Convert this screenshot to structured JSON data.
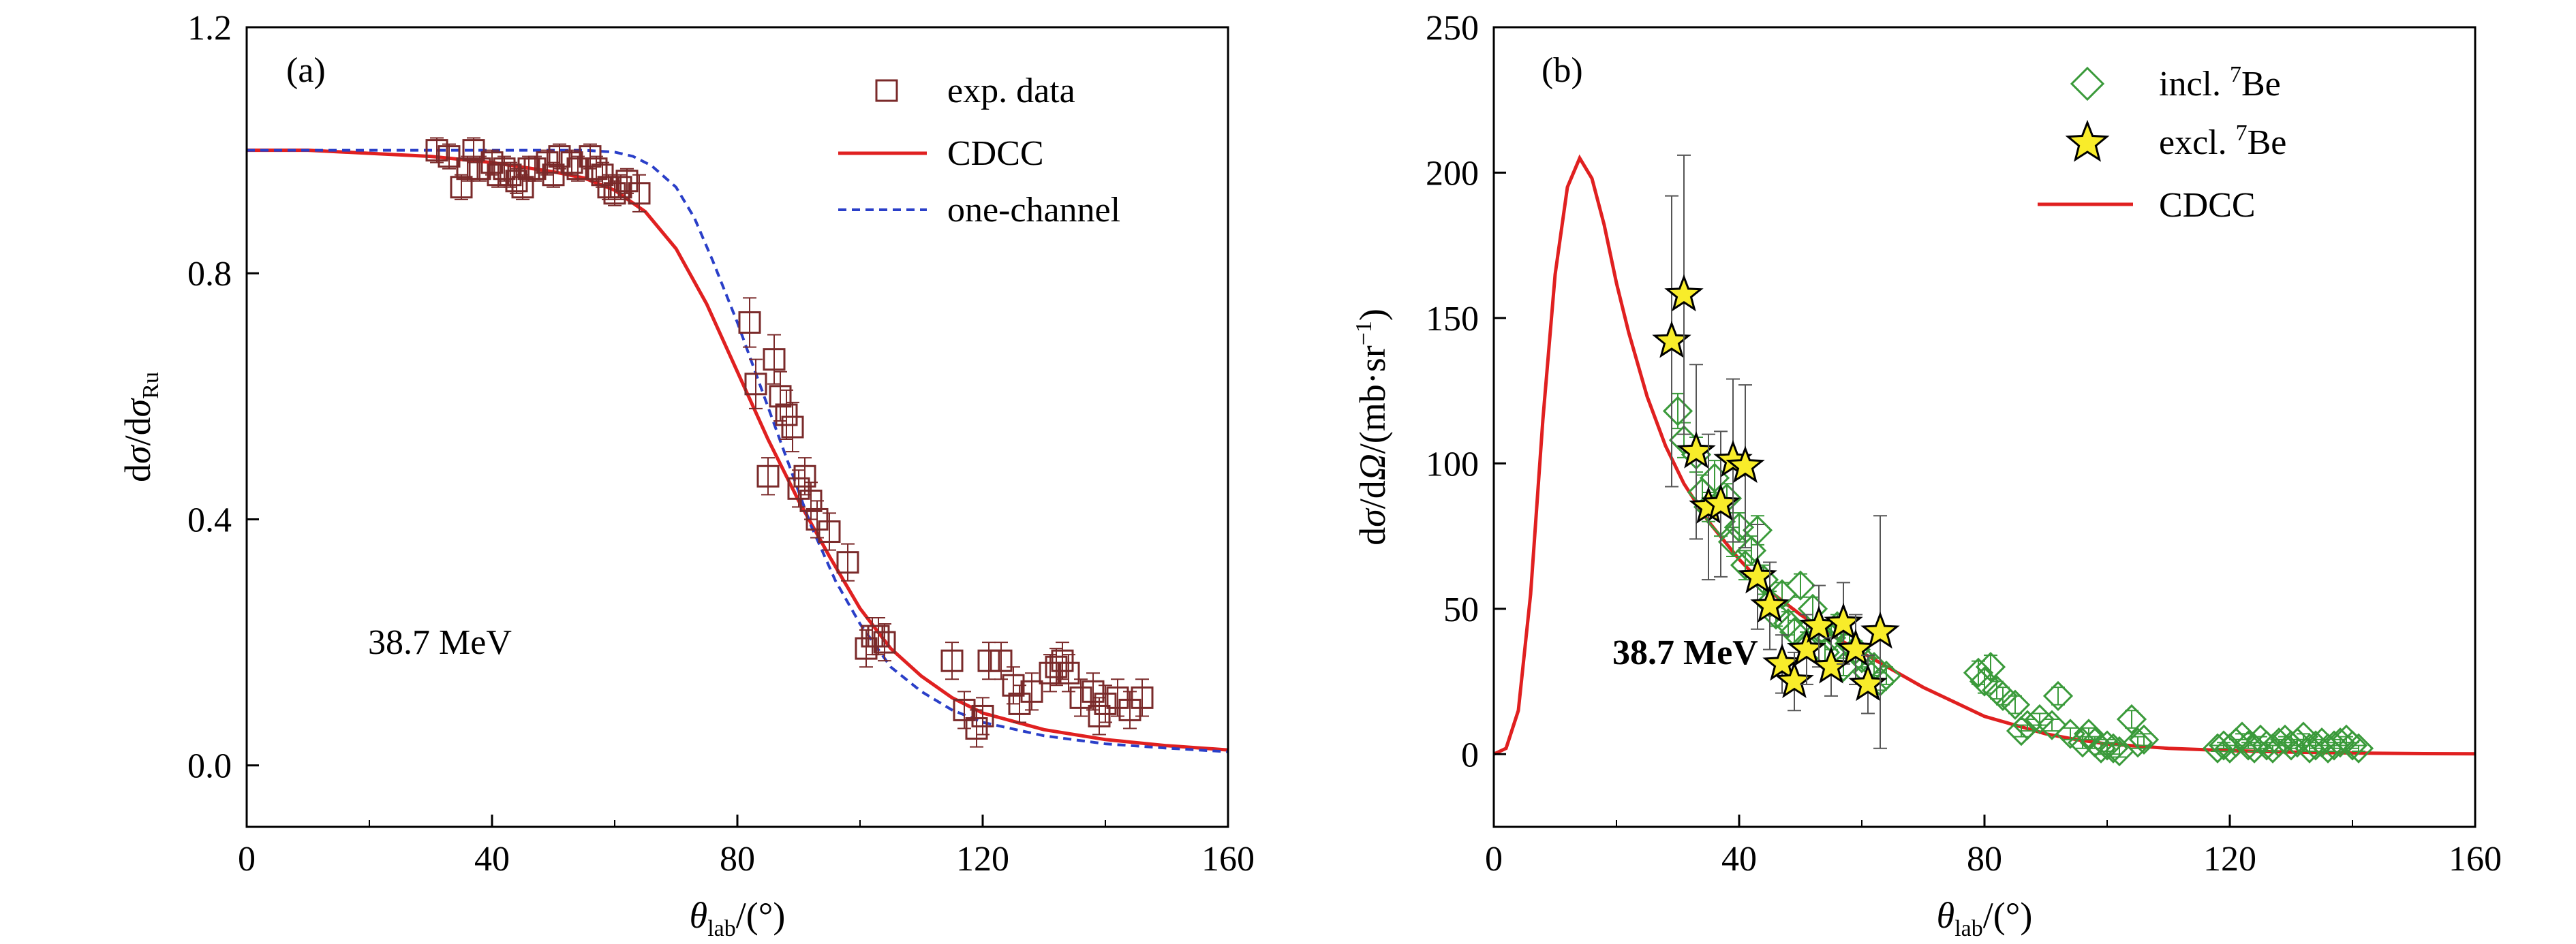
{
  "chart_data": [
    {
      "type": "scatter",
      "panel": "(a)",
      "annotation": "38.7 MeV",
      "xlabel": "θlab/(°)",
      "ylabel": "dσ/dσRu",
      "xlim": [
        0,
        160
      ],
      "ylim": [
        -0.1,
        1.2
      ],
      "xticks": [
        0,
        40,
        80,
        120,
        160
      ],
      "yticks": [
        0.0,
        0.4,
        0.8,
        1.2
      ],
      "legend_position": "top-right",
      "grid": false,
      "series": [
        {
          "name": "exp. data",
          "kind": "points",
          "marker": "open-square",
          "color": "#7a2a2a",
          "x": [
            31,
            33,
            35,
            36,
            37,
            38,
            40,
            41,
            42,
            43,
            44,
            45,
            46,
            47,
            49,
            50,
            51,
            53,
            54,
            56,
            57,
            58,
            59,
            60,
            61,
            62,
            64,
            82,
            83,
            85,
            86,
            87,
            88,
            89,
            90,
            91,
            92,
            93,
            95,
            98,
            101,
            102,
            103,
            104,
            115,
            117,
            119,
            120,
            121,
            123,
            125,
            126,
            128,
            131,
            132,
            133,
            134,
            136,
            138,
            139,
            140,
            142,
            144,
            146
          ],
          "y": [
            1.0,
            0.99,
            0.94,
            0.97,
            1.0,
            0.97,
            0.98,
            0.96,
            0.97,
            0.96,
            0.95,
            0.94,
            0.97,
            0.97,
            0.98,
            0.96,
            0.99,
            0.98,
            0.97,
            0.99,
            0.97,
            0.96,
            0.94,
            0.93,
            0.94,
            0.95,
            0.93,
            0.72,
            0.62,
            0.47,
            0.66,
            0.6,
            0.57,
            0.55,
            0.45,
            0.47,
            0.43,
            0.4,
            0.38,
            0.33,
            0.19,
            0.21,
            0.21,
            0.2,
            0.17,
            0.09,
            0.06,
            0.08,
            0.17,
            0.17,
            0.13,
            0.1,
            0.12,
            0.15,
            0.16,
            0.17,
            0.15,
            0.11,
            0.12,
            0.08,
            0.1,
            0.11,
            0.09,
            0.11
          ],
          "yerr": [
            0.02,
            0.02,
            0.02,
            0.02,
            0.02,
            0.02,
            0.02,
            0.02,
            0.02,
            0.02,
            0.02,
            0.02,
            0.02,
            0.02,
            0.02,
            0.02,
            0.02,
            0.02,
            0.02,
            0.02,
            0.02,
            0.02,
            0.02,
            0.02,
            0.02,
            0.02,
            0.03,
            0.04,
            0.04,
            0.03,
            0.04,
            0.04,
            0.04,
            0.04,
            0.03,
            0.03,
            0.03,
            0.03,
            0.03,
            0.03,
            0.03,
            0.03,
            0.03,
            0.03,
            0.03,
            0.03,
            0.03,
            0.03,
            0.03,
            0.03,
            0.03,
            0.03,
            0.03,
            0.03,
            0.03,
            0.03,
            0.03,
            0.03,
            0.03,
            0.03,
            0.03,
            0.03,
            0.03,
            0.03
          ]
        },
        {
          "name": "CDCC",
          "kind": "line",
          "style": "solid",
          "color": "#e02020",
          "x": [
            0,
            10,
            20,
            30,
            40,
            50,
            55,
            60,
            65,
            70,
            75,
            80,
            85,
            90,
            95,
            100,
            105,
            110,
            115,
            120,
            130,
            140,
            150,
            160
          ],
          "y": [
            1.0,
            1.0,
            0.995,
            0.99,
            0.98,
            0.965,
            0.955,
            0.935,
            0.9,
            0.84,
            0.75,
            0.64,
            0.53,
            0.43,
            0.34,
            0.255,
            0.19,
            0.145,
            0.11,
            0.085,
            0.058,
            0.042,
            0.032,
            0.025
          ]
        },
        {
          "name": "one-channel",
          "kind": "line",
          "style": "dashed",
          "color": "#2a3fc8",
          "x": [
            0,
            10,
            20,
            30,
            40,
            50,
            55,
            60,
            63,
            66,
            70,
            73,
            76,
            80,
            84,
            88,
            92,
            96,
            100,
            105,
            110,
            115,
            120,
            130,
            140,
            150,
            160
          ],
          "y": [
            1.0,
            1.0,
            1.0,
            1.0,
            1.0,
            1.0,
            1.0,
            0.997,
            0.99,
            0.975,
            0.94,
            0.89,
            0.82,
            0.72,
            0.61,
            0.5,
            0.39,
            0.3,
            0.23,
            0.16,
            0.12,
            0.09,
            0.07,
            0.048,
            0.035,
            0.028,
            0.022
          ]
        }
      ]
    },
    {
      "type": "scatter",
      "panel": "(b)",
      "annotation": "38.7 MeV",
      "xlabel": "θlab/(°)",
      "ylabel": "dσ/dΩ/(mb·sr−1)",
      "xlim": [
        0,
        160
      ],
      "ylim": [
        -25,
        250
      ],
      "xticks": [
        0,
        40,
        80,
        120,
        160
      ],
      "yticks": [
        0,
        50,
        100,
        150,
        200,
        250
      ],
      "legend_position": "top-right",
      "grid": false,
      "series": [
        {
          "name": "incl. 7Be",
          "kind": "points",
          "marker": "open-diamond",
          "color": "#3a9a3a",
          "x": [
            30,
            31,
            33,
            34,
            35,
            36,
            37,
            38,
            39,
            40,
            41,
            42,
            43,
            44,
            45,
            46,
            47,
            48,
            49,
            50,
            51,
            52,
            53,
            54,
            55,
            56,
            57,
            58,
            59,
            60,
            61,
            62,
            63,
            64,
            79,
            80,
            81,
            82,
            83,
            85,
            86,
            87,
            89,
            91,
            92,
            94,
            96,
            97,
            98,
            99,
            100,
            101,
            102,
            104,
            105,
            106,
            118,
            119,
            120,
            121,
            122,
            123,
            124,
            125,
            126,
            127,
            128,
            129,
            130,
            131,
            132,
            133,
            134,
            135,
            136,
            137,
            138,
            139,
            140,
            141
          ],
          "y": [
            118,
            108,
            103,
            90,
            85,
            95,
            80,
            88,
            73,
            78,
            65,
            70,
            77,
            60,
            52,
            48,
            55,
            45,
            42,
            58,
            38,
            50,
            42,
            35,
            40,
            44,
            30,
            38,
            36,
            33,
            28,
            30,
            25,
            27,
            28,
            25,
            30,
            22,
            20,
            17,
            8,
            10,
            12,
            10,
            20,
            7,
            4,
            7,
            4,
            2,
            3,
            2,
            1,
            12,
            4,
            5,
            2,
            3,
            2,
            4,
            6,
            3,
            2,
            5,
            3,
            2,
            4,
            5,
            3,
            4,
            6,
            2,
            3,
            4,
            2,
            3,
            4,
            5,
            3,
            2
          ],
          "yerr": [
            6,
            6,
            6,
            6,
            5,
            6,
            5,
            5,
            5,
            5,
            5,
            5,
            5,
            5,
            4,
            4,
            4,
            4,
            4,
            4,
            4,
            4,
            4,
            4,
            4,
            4,
            3,
            3,
            3,
            3,
            3,
            3,
            3,
            3,
            4,
            4,
            4,
            3,
            3,
            3,
            2,
            2,
            2,
            2,
            3,
            2,
            2,
            2,
            2,
            2,
            2,
            2,
            2,
            3,
            2,
            2,
            1,
            1,
            1,
            1,
            1,
            1,
            1,
            1,
            1,
            1,
            1,
            1,
            1,
            1,
            1,
            1,
            1,
            1,
            1,
            1,
            1,
            1,
            1,
            1
          ]
        },
        {
          "name": "excl. 7Be",
          "kind": "points",
          "marker": "star",
          "color": "#f8ec2a",
          "x": [
            29,
            31,
            33,
            35,
            37,
            39,
            41,
            43,
            45,
            47,
            49,
            51,
            53,
            55,
            57,
            59,
            61,
            63
          ],
          "y": [
            142,
            158,
            104,
            85,
            86,
            101,
            99,
            61,
            51,
            31,
            25,
            36,
            44,
            30,
            45,
            36,
            24,
            42
          ],
          "yerr": [
            50,
            48,
            30,
            25,
            25,
            28,
            28,
            18,
            15,
            10,
            10,
            12,
            14,
            10,
            14,
            12,
            10,
            40
          ]
        },
        {
          "name": "CDCC",
          "kind": "line",
          "style": "solid",
          "color": "#e02020",
          "x": [
            0,
            2,
            4,
            6,
            8,
            10,
            12,
            14,
            16,
            18,
            20,
            22,
            25,
            28,
            31,
            35,
            40,
            45,
            50,
            55,
            60,
            65,
            70,
            75,
            80,
            85,
            90,
            95,
            100,
            110,
            120,
            130,
            140,
            150,
            160
          ],
          "y": [
            0,
            2,
            15,
            55,
            115,
            165,
            195,
            205,
            198,
            182,
            162,
            145,
            123,
            106,
            93,
            80,
            67,
            56,
            48,
            41,
            35,
            29,
            23,
            18,
            13,
            10,
            7,
            5,
            3.5,
            2,
            1.2,
            0.7,
            0.4,
            0.2,
            0.1
          ]
        }
      ]
    }
  ]
}
